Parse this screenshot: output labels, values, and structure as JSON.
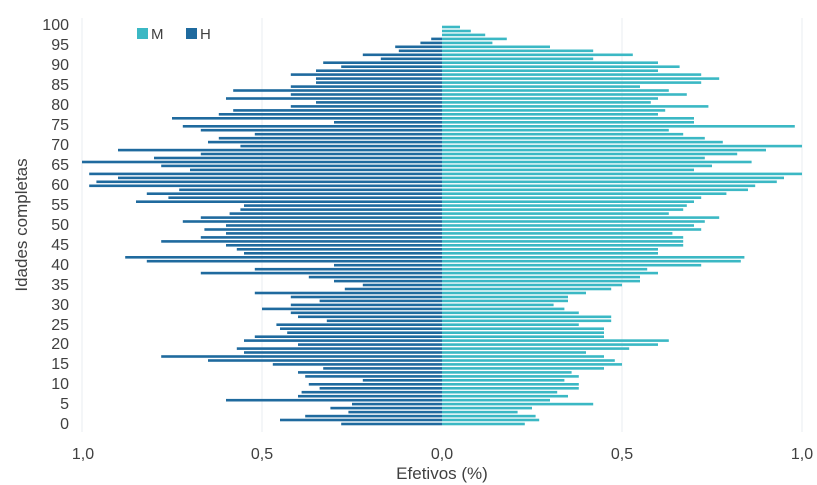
{
  "chart_data": {
    "type": "bar",
    "orientation": "horizontal",
    "layout": "population-pyramid",
    "xlabel": "Efetivos (%)",
    "ylabel": "Idades completas",
    "x_ticks": [
      "1,0",
      "0,5",
      "0,0",
      "0,5",
      "1,0"
    ],
    "y_ticks": [
      "0",
      "5",
      "10",
      "15",
      "20",
      "25",
      "30",
      "35",
      "40",
      "45",
      "50",
      "55",
      "60",
      "65",
      "70",
      "75",
      "80",
      "85",
      "90",
      "95",
      "100"
    ],
    "xlim": [
      -1.0,
      1.0
    ],
    "ylim": [
      0,
      100
    ],
    "grid": "vertical",
    "legend_position": "top-left",
    "colors": {
      "M": "#3bb8c4",
      "H": "#1f6a9e"
    },
    "series": [
      {
        "name": "M",
        "side": "right",
        "values": [
          0.23,
          0.27,
          0.26,
          0.21,
          0.25,
          0.42,
          0.3,
          0.35,
          0.32,
          0.38,
          0.38,
          0.34,
          0.38,
          0.36,
          0.45,
          0.5,
          0.48,
          0.45,
          0.4,
          0.52,
          0.6,
          0.63,
          0.45,
          0.45,
          0.45,
          0.38,
          0.47,
          0.47,
          0.38,
          0.34,
          0.31,
          0.35,
          0.35,
          0.4,
          0.47,
          0.5,
          0.55,
          0.55,
          0.6,
          0.57,
          0.72,
          0.83,
          0.84,
          0.6,
          0.6,
          0.67,
          0.67,
          0.67,
          0.64,
          0.72,
          0.7,
          0.73,
          0.77,
          0.63,
          0.67,
          0.68,
          0.7,
          0.72,
          0.79,
          0.85,
          0.87,
          0.93,
          0.95,
          1.0,
          0.7,
          0.75,
          0.86,
          0.73,
          0.82,
          0.9,
          1.0,
          0.78,
          0.73,
          0.67,
          0.63,
          0.98,
          0.7,
          0.7,
          0.6,
          0.62,
          0.74,
          0.58,
          0.6,
          0.68,
          0.63,
          0.55,
          0.72,
          0.77,
          0.72,
          0.6,
          0.66,
          0.6,
          0.42,
          0.53,
          0.42,
          0.3,
          0.14,
          0.18,
          0.12,
          0.08,
          0.05
        ]
      },
      {
        "name": "H",
        "side": "left",
        "values": [
          0.28,
          0.45,
          0.38,
          0.26,
          0.31,
          0.25,
          0.6,
          0.4,
          0.39,
          0.34,
          0.37,
          0.22,
          0.38,
          0.4,
          0.33,
          0.47,
          0.65,
          0.78,
          0.55,
          0.57,
          0.4,
          0.55,
          0.52,
          0.43,
          0.45,
          0.46,
          0.32,
          0.4,
          0.42,
          0.5,
          0.42,
          0.34,
          0.42,
          0.52,
          0.27,
          0.22,
          0.3,
          0.37,
          0.67,
          0.52,
          0.3,
          0.82,
          0.88,
          0.55,
          0.57,
          0.6,
          0.78,
          0.67,
          0.6,
          0.66,
          0.6,
          0.72,
          0.67,
          0.59,
          0.56,
          0.55,
          0.85,
          0.76,
          0.82,
          0.73,
          0.98,
          0.96,
          0.9,
          0.98,
          0.7,
          0.78,
          1.0,
          0.8,
          0.67,
          0.9,
          0.56,
          0.65,
          0.62,
          0.52,
          0.67,
          0.72,
          0.3,
          0.75,
          0.62,
          0.58,
          0.42,
          0.35,
          0.6,
          0.42,
          0.58,
          0.42,
          0.35,
          0.35,
          0.42,
          0.35,
          0.28,
          0.33,
          0.17,
          0.22,
          0.12,
          0.13,
          0.06,
          0.03,
          0.0,
          0.0,
          0.0
        ]
      }
    ]
  }
}
